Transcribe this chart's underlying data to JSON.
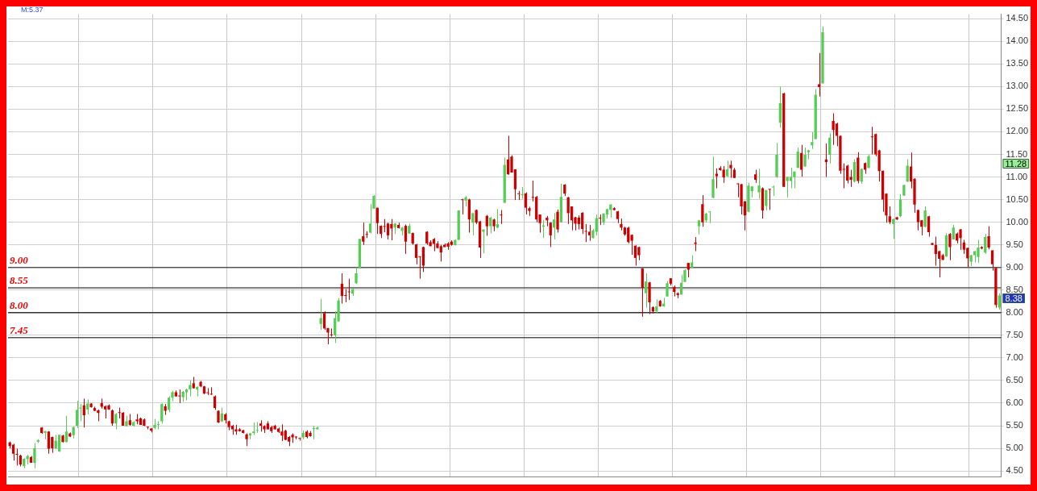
{
  "chart_data": {
    "type": "candlestick",
    "tick_labels": "y",
    "grid": true,
    "categories": [
      null,
      null,
      null,
      null,
      null,
      null,
      null,
      null,
      null,
      null,
      null,
      null,
      null,
      null,
      null,
      null,
      null,
      null,
      null,
      null,
      null,
      null,
      null,
      null,
      null,
      null,
      null,
      null,
      null,
      null,
      null,
      null,
      null,
      null,
      null,
      null,
      null,
      null,
      null,
      null,
      null,
      null,
      null,
      null,
      null,
      null,
      null,
      null,
      null,
      null,
      null,
      null,
      null,
      null,
      null,
      null,
      null,
      null,
      null,
      null,
      null,
      null,
      null,
      null,
      null,
      null,
      null,
      null,
      null,
      null,
      null,
      null,
      null,
      null,
      null,
      null,
      null,
      null,
      null,
      null,
      null,
      null,
      null,
      null,
      null,
      null,
      null,
      null,
      null,
      null,
      null,
      null,
      null,
      null,
      null,
      null,
      null,
      null,
      null,
      null,
      null,
      null,
      null,
      null,
      null,
      null,
      null,
      null,
      null,
      null,
      null,
      null,
      null,
      null,
      null,
      null,
      null,
      null,
      null,
      null,
      null,
      null,
      null,
      null,
      null,
      null,
      null,
      null,
      null,
      null,
      null,
      null,
      null,
      null,
      null,
      null,
      null,
      null,
      null,
      null,
      null,
      null,
      null,
      null,
      null,
      null,
      null,
      null,
      null,
      null,
      null,
      null,
      null,
      null,
      null,
      null,
      null,
      null,
      null,
      null,
      null,
      null,
      null,
      null,
      null,
      null,
      null,
      null,
      null,
      null,
      null,
      null,
      null,
      null,
      null,
      null,
      null,
      null,
      null,
      null,
      null,
      null,
      null,
      null,
      null,
      null,
      null,
      null,
      null,
      null,
      null,
      null,
      null,
      null,
      null,
      null,
      null,
      null,
      null,
      null,
      null,
      null,
      null,
      null,
      null,
      null,
      null,
      null,
      null,
      null,
      null,
      null,
      null,
      null,
      null,
      null,
      null,
      null,
      null,
      null,
      null,
      null,
      null,
      null,
      null,
      null,
      null,
      null,
      null,
      null,
      null,
      null,
      null,
      null,
      null,
      null,
      null,
      null,
      null,
      null,
      null,
      null,
      null,
      null,
      null,
      null,
      null,
      null,
      null,
      null,
      null,
      null,
      null,
      null,
      null,
      null,
      null,
      null,
      null,
      null,
      null,
      null,
      null,
      null,
      null,
      null,
      null,
      null,
      null,
      null,
      null,
      null,
      null,
      null,
      null,
      null,
      null,
      null,
      null,
      null,
      null
    ],
    "ohlc": [
      [
        5.13,
        5.15,
        5.0,
        5.05
      ],
      [
        5.08,
        5.1,
        4.73,
        4.88
      ],
      [
        4.86,
        4.99,
        4.62,
        4.86
      ],
      [
        4.84,
        4.86,
        4.6,
        4.64
      ],
      [
        4.61,
        4.78,
        4.56,
        4.77
      ],
      [
        4.76,
        4.86,
        4.64,
        4.83
      ],
      [
        4.81,
        4.83,
        4.68,
        4.68
      ],
      [
        4.68,
        5.12,
        4.56,
        5.0
      ],
      [
        5.15,
        5.2,
        5.12,
        5.18
      ],
      [
        5.46,
        5.47,
        5.32,
        5.34
      ],
      [
        5.34,
        5.38,
        5.2,
        5.38
      ],
      [
        5.37,
        5.38,
        4.88,
        4.99
      ],
      [
        5.25,
        5.26,
        4.9,
        5.0
      ],
      [
        5.0,
        5.3,
        4.98,
        5.17
      ],
      [
        4.93,
        5.3,
        4.92,
        5.3
      ],
      [
        5.28,
        5.3,
        5.13,
        5.14
      ],
      [
        5.14,
        5.72,
        5.13,
        5.37
      ],
      [
        5.33,
        5.35,
        5.25,
        5.26
      ],
      [
        5.29,
        5.48,
        5.22,
        5.47
      ],
      [
        5.5,
        6.05,
        5.45,
        5.85
      ],
      [
        5.88,
        5.98,
        5.6,
        5.9
      ],
      [
        5.95,
        6.1,
        5.46,
        5.73
      ],
      [
        5.86,
        6.08,
        5.75,
        5.99
      ],
      [
        5.99,
        6.0,
        5.9,
        5.91
      ],
      [
        5.89,
        5.92,
        5.82,
        5.83
      ],
      [
        5.84,
        5.86,
        5.6,
        5.78
      ],
      [
        6.0,
        6.1,
        5.88,
        5.92
      ],
      [
        5.93,
        5.95,
        5.66,
        5.86
      ],
      [
        5.95,
        5.97,
        5.85,
        5.86
      ],
      [
        5.84,
        5.86,
        5.5,
        5.55
      ],
      [
        5.55,
        5.78,
        5.42,
        5.76
      ],
      [
        5.8,
        5.9,
        5.66,
        5.78
      ],
      [
        5.79,
        5.8,
        5.5,
        5.5
      ],
      [
        5.49,
        5.72,
        5.48,
        5.6
      ],
      [
        5.62,
        5.76,
        5.5,
        5.52
      ],
      [
        5.5,
        5.6,
        5.48,
        5.58
      ],
      [
        5.64,
        5.76,
        5.53,
        5.6
      ],
      [
        5.66,
        5.68,
        5.52,
        5.52
      ],
      [
        5.64,
        5.66,
        5.49,
        5.5
      ],
      [
        5.47,
        5.48,
        5.42,
        5.46
      ],
      [
        5.44,
        5.45,
        5.35,
        5.39
      ],
      [
        5.45,
        5.65,
        5.42,
        5.52
      ],
      [
        5.52,
        5.6,
        5.42,
        5.53
      ],
      [
        5.6,
        5.99,
        5.55,
        5.98
      ],
      [
        5.93,
        5.98,
        5.74,
        5.83
      ],
      [
        5.85,
        6.15,
        5.8,
        6.12
      ],
      [
        6.12,
        6.27,
        6.04,
        6.24
      ],
      [
        6.24,
        6.28,
        6.14,
        6.15
      ],
      [
        6.16,
        6.3,
        6.0,
        6.15
      ],
      [
        6.13,
        6.27,
        6.03,
        6.25
      ],
      [
        6.24,
        6.32,
        6.06,
        6.3
      ],
      [
        6.3,
        6.5,
        6.15,
        6.4
      ],
      [
        6.44,
        6.58,
        6.32,
        6.33
      ],
      [
        6.3,
        6.37,
        6.15,
        6.36
      ],
      [
        6.47,
        6.49,
        6.35,
        6.37
      ],
      [
        6.37,
        6.38,
        6.2,
        6.21
      ],
      [
        6.22,
        6.33,
        6.18,
        6.22
      ],
      [
        6.2,
        6.35,
        6.18,
        6.19
      ],
      [
        6.15,
        6.17,
        5.85,
        5.89
      ],
      [
        5.83,
        5.84,
        5.56,
        5.57
      ],
      [
        5.6,
        5.9,
        5.58,
        5.77
      ],
      [
        5.75,
        5.78,
        5.55,
        5.62
      ],
      [
        5.6,
        5.61,
        5.4,
        5.47
      ],
      [
        5.5,
        5.52,
        5.3,
        5.42
      ],
      [
        5.42,
        5.52,
        5.3,
        5.37
      ],
      [
        5.42,
        5.45,
        5.37,
        5.38
      ],
      [
        5.4,
        5.41,
        5.33,
        5.34
      ],
      [
        5.31,
        5.33,
        5.05,
        5.2
      ],
      [
        5.28,
        5.34,
        5.2,
        5.33
      ],
      [
        5.34,
        5.57,
        5.3,
        5.37
      ],
      [
        5.39,
        5.58,
        5.34,
        5.4
      ],
      [
        5.55,
        5.62,
        5.37,
        5.5
      ],
      [
        5.49,
        5.51,
        5.34,
        5.42
      ],
      [
        5.55,
        5.6,
        5.42,
        5.42
      ],
      [
        5.47,
        5.5,
        5.34,
        5.38
      ],
      [
        5.5,
        5.52,
        5.42,
        5.42
      ],
      [
        5.44,
        5.46,
        5.34,
        5.36
      ],
      [
        5.37,
        5.53,
        5.16,
        5.28
      ],
      [
        5.39,
        5.41,
        5.18,
        5.19
      ],
      [
        5.25,
        5.27,
        5.05,
        5.15
      ],
      [
        5.3,
        5.33,
        5.12,
        5.24
      ],
      [
        5.24,
        5.27,
        5.2,
        5.24
      ],
      [
        5.22,
        5.24,
        5.17,
        5.21
      ],
      [
        5.24,
        5.39,
        5.2,
        5.34
      ],
      [
        5.37,
        5.4,
        5.22,
        5.25
      ],
      [
        5.34,
        5.38,
        5.26,
        5.27
      ],
      [
        5.43,
        5.5,
        5.2,
        5.44
      ],
      [
        5.42,
        5.48,
        5.42,
        5.46
      ],
      [
        7.75,
        8.3,
        7.62,
        7.88
      ],
      [
        7.99,
        8.03,
        7.62,
        7.65
      ],
      [
        7.66,
        7.66,
        7.3,
        7.56
      ],
      [
        7.5,
        7.65,
        7.47,
        7.5
      ],
      [
        7.5,
        8.03,
        7.33,
        7.88
      ],
      [
        7.81,
        8.32,
        7.8,
        8.27
      ],
      [
        8.64,
        8.87,
        8.2,
        8.37
      ],
      [
        8.37,
        8.52,
        8.23,
        8.37
      ],
      [
        8.45,
        8.75,
        8.28,
        8.45
      ],
      [
        8.42,
        8.53,
        8.37,
        8.52
      ],
      [
        8.65,
        9.0,
        8.63,
        8.87
      ],
      [
        8.98,
        9.63,
        8.98,
        9.63
      ],
      [
        9.69,
        9.99,
        9.5,
        9.57
      ],
      [
        9.72,
        9.8,
        9.65,
        9.72
      ],
      [
        9.77,
        10.4,
        9.75,
        9.97
      ],
      [
        10.3,
        10.6,
        10.3,
        10.58
      ],
      [
        10.32,
        10.32,
        9.74,
        9.98
      ],
      [
        9.92,
        9.93,
        9.65,
        9.74
      ],
      [
        9.9,
        10.07,
        9.78,
        9.9
      ],
      [
        9.97,
        9.99,
        9.62,
        9.71
      ],
      [
        9.96,
        10.07,
        9.6,
        9.86
      ],
      [
        9.88,
        9.98,
        9.74,
        9.97
      ],
      [
        9.94,
        9.99,
        9.86,
        9.87
      ],
      [
        9.81,
        9.9,
        9.71,
        9.88
      ],
      [
        9.92,
        9.95,
        9.3,
        9.57
      ],
      [
        9.75,
        9.97,
        9.74,
        9.92
      ],
      [
        9.76,
        9.77,
        9.5,
        9.53
      ],
      [
        9.51,
        9.52,
        9.07,
        9.21
      ],
      [
        9.23,
        9.24,
        8.75,
        9.23
      ],
      [
        9.45,
        9.46,
        8.9,
        9.04
      ],
      [
        9.79,
        9.8,
        9.5,
        9.53
      ],
      [
        9.56,
        9.6,
        9.47,
        9.47
      ],
      [
        9.63,
        9.65,
        9.36,
        9.52
      ],
      [
        9.53,
        9.58,
        9.42,
        9.43
      ],
      [
        9.47,
        9.5,
        9.13,
        9.33
      ],
      [
        9.5,
        9.53,
        9.45,
        9.45
      ],
      [
        9.53,
        9.56,
        9.39,
        9.46
      ],
      [
        9.57,
        9.6,
        9.48,
        9.5
      ],
      [
        9.49,
        9.61,
        9.49,
        9.61
      ],
      [
        9.61,
        10.26,
        9.61,
        10.26
      ],
      [
        10.49,
        10.52,
        10.17,
        10.49
      ],
      [
        10.48,
        10.58,
        10.35,
        10.55
      ],
      [
        10.5,
        10.52,
        9.77,
        10.06
      ],
      [
        9.99,
        10.2,
        9.71,
        10.2
      ],
      [
        10.27,
        10.28,
        9.96,
        9.99
      ],
      [
        10.02,
        10.03,
        9.21,
        9.44
      ],
      [
        9.79,
        9.84,
        9.31,
        9.84
      ],
      [
        10.14,
        10.16,
        9.7,
        9.91
      ],
      [
        9.91,
        10.12,
        9.75,
        10.1
      ],
      [
        10.06,
        10.08,
        9.8,
        9.91
      ],
      [
        9.88,
        10.29,
        9.87,
        9.96
      ],
      [
        10.15,
        10.27,
        9.96,
        10.15
      ],
      [
        10.43,
        11.43,
        10.43,
        11.27
      ],
      [
        11.39,
        11.91,
        11.05,
        11.06
      ],
      [
        11.45,
        11.48,
        11.1,
        11.1
      ],
      [
        11.17,
        11.17,
        10.49,
        10.73
      ],
      [
        10.62,
        10.69,
        10.49,
        10.62
      ],
      [
        10.6,
        10.78,
        10.52,
        10.62
      ],
      [
        10.64,
        10.66,
        10.17,
        10.32
      ],
      [
        10.31,
        10.34,
        10.14,
        10.25
      ],
      [
        10.54,
        10.92,
        10.46,
        10.54
      ],
      [
        10.56,
        10.58,
        10.0,
        10.06
      ],
      [
        10.17,
        10.17,
        9.77,
        9.98
      ],
      [
        9.9,
        10.05,
        9.65,
        9.93
      ],
      [
        10.1,
        10.14,
        9.91,
        10.04
      ],
      [
        9.99,
        10.0,
        9.45,
        9.71
      ],
      [
        9.88,
        10.2,
        9.62,
        10.06
      ],
      [
        10.23,
        10.28,
        9.77,
        9.84
      ],
      [
        10.0,
        10.85,
        9.99,
        10.56
      ],
      [
        10.83,
        10.84,
        10.58,
        10.63
      ],
      [
        10.55,
        10.56,
        9.96,
        10.2
      ],
      [
        10.35,
        10.35,
        9.82,
        10.04
      ],
      [
        10.11,
        10.12,
        9.82,
        9.97
      ],
      [
        10.1,
        10.15,
        9.84,
        9.96
      ],
      [
        10.21,
        10.22,
        9.74,
        9.85
      ],
      [
        9.79,
        9.96,
        9.56,
        9.79
      ],
      [
        9.79,
        9.94,
        9.59,
        9.71
      ],
      [
        9.65,
        9.85,
        9.64,
        9.82
      ],
      [
        9.79,
        10.17,
        9.71,
        10.09
      ],
      [
        10.08,
        10.17,
        9.94,
        10.08
      ],
      [
        9.99,
        10.2,
        9.94,
        10.19
      ],
      [
        10.17,
        10.29,
        10.08,
        10.29
      ],
      [
        10.27,
        10.4,
        10.1,
        10.39
      ],
      [
        10.31,
        10.33,
        10.26,
        10.27
      ],
      [
        10.24,
        10.25,
        9.98,
        10.07
      ],
      [
        9.96,
        10.08,
        9.82,
        9.88
      ],
      [
        9.88,
        9.9,
        9.7,
        9.73
      ],
      [
        9.88,
        9.9,
        9.53,
        9.56
      ],
      [
        9.72,
        9.73,
        9.28,
        9.59
      ],
      [
        9.48,
        9.49,
        9.04,
        9.21
      ],
      [
        9.45,
        9.46,
        9.16,
        9.27
      ],
      [
        8.98,
        8.98,
        7.91,
        8.55
      ],
      [
        8.43,
        8.87,
        8.11,
        8.69
      ],
      [
        8.67,
        8.68,
        7.97,
        8.23
      ],
      [
        8.12,
        8.14,
        7.98,
        8.03
      ],
      [
        8.03,
        8.29,
        7.99,
        8.14
      ],
      [
        8.26,
        8.28,
        8.13,
        8.14
      ],
      [
        8.14,
        8.33,
        8.13,
        8.2
      ],
      [
        8.36,
        8.7,
        8.35,
        8.65
      ],
      [
        8.76,
        8.76,
        8.6,
        8.64
      ],
      [
        8.57,
        8.6,
        8.36,
        8.46
      ],
      [
        8.43,
        8.45,
        8.32,
        8.39
      ],
      [
        8.4,
        8.84,
        8.4,
        8.66
      ],
      [
        8.68,
        8.96,
        8.68,
        8.94
      ],
      [
        9.1,
        9.1,
        8.78,
        8.95
      ],
      [
        8.99,
        9.27,
        8.99,
        9.11
      ],
      [
        9.55,
        9.67,
        9.36,
        9.52
      ],
      [
        9.91,
        10.05,
        9.73,
        10.04
      ],
      [
        10.4,
        10.6,
        9.9,
        10.0
      ],
      [
        10.04,
        10.21,
        9.99,
        10.19
      ],
      [
        10.22,
        10.24,
        9.98,
        10.23
      ],
      [
        10.54,
        11.45,
        10.53,
        10.95
      ],
      [
        11.07,
        11.19,
        10.75,
        11.02
      ],
      [
        11.2,
        11.24,
        11.14,
        11.15
      ],
      [
        11.16,
        11.24,
        10.87,
        10.99
      ],
      [
        11.02,
        11.36,
        11.0,
        11.17
      ],
      [
        11.27,
        11.36,
        10.98,
        11.19
      ],
      [
        11.16,
        11.2,
        10.98,
        10.98
      ],
      [
        10.84,
        10.86,
        10.55,
        10.84
      ],
      [
        10.84,
        10.85,
        10.17,
        10.35
      ],
      [
        10.46,
        10.47,
        9.82,
        10.15
      ],
      [
        10.23,
        10.87,
        10.22,
        10.81
      ],
      [
        10.69,
        10.8,
        10.55,
        10.79
      ],
      [
        11.06,
        11.16,
        10.87,
        10.94
      ],
      [
        10.66,
        11.18,
        10.52,
        10.81
      ],
      [
        10.75,
        10.77,
        10.08,
        10.26
      ],
      [
        10.36,
        10.71,
        10.26,
        10.71
      ],
      [
        10.72,
        10.73,
        10.27,
        10.72
      ],
      [
        10.77,
        10.81,
        10.58,
        10.78
      ],
      [
        11.0,
        11.75,
        10.98,
        11.49
      ],
      [
        12.2,
        13.0,
        12.09,
        12.63
      ],
      [
        12.85,
        12.86,
        10.78,
        10.78
      ],
      [
        10.91,
        11.0,
        10.55,
        11.0
      ],
      [
        10.91,
        11.2,
        10.75,
        11.0
      ],
      [
        11.0,
        11.12,
        10.75,
        11.12
      ],
      [
        11.2,
        11.65,
        11.2,
        11.56
      ],
      [
        11.53,
        11.71,
        11.01,
        11.16
      ],
      [
        11.23,
        11.65,
        11.23,
        11.49
      ],
      [
        11.55,
        11.6,
        11.39,
        11.59
      ],
      [
        11.7,
        11.99,
        11.62,
        11.77
      ],
      [
        11.84,
        12.94,
        11.84,
        12.82
      ],
      [
        13.05,
        13.74,
        12.78,
        12.99
      ],
      [
        13.07,
        14.33,
        13.07,
        14.2
      ],
      [
        11.39,
        11.74,
        11.0,
        11.33
      ],
      [
        11.49,
        11.97,
        11.3,
        11.87
      ],
      [
        12.24,
        12.41,
        11.71,
        12.04
      ],
      [
        12.18,
        12.2,
        11.68,
        11.91
      ],
      [
        11.91,
        11.92,
        11.07,
        11.14
      ],
      [
        11.16,
        11.3,
        10.75,
        11.16
      ],
      [
        11.25,
        11.27,
        10.86,
        10.92
      ],
      [
        11.0,
        11.16,
        10.78,
        10.94
      ],
      [
        10.9,
        11.39,
        10.88,
        11.33
      ],
      [
        11.43,
        11.55,
        10.86,
        10.91
      ],
      [
        10.9,
        11.19,
        10.85,
        11.18
      ],
      [
        11.31,
        11.32,
        11.07,
        11.16
      ],
      [
        11.2,
        11.5,
        11.19,
        11.46
      ],
      [
        11.88,
        12.11,
        11.5,
        11.88
      ],
      [
        11.95,
        11.96,
        11.46,
        11.5
      ],
      [
        11.59,
        11.6,
        10.9,
        11.13
      ],
      [
        11.14,
        11.14,
        10.23,
        10.5
      ],
      [
        10.63,
        10.64,
        9.99,
        10.15
      ],
      [
        10.13,
        10.35,
        9.96,
        10.0
      ],
      [
        9.96,
        10.08,
        9.63,
        10.07
      ],
      [
        10.11,
        10.12,
        10.05,
        10.06
      ],
      [
        10.13,
        10.62,
        10.11,
        10.5
      ],
      [
        10.59,
        10.83,
        10.58,
        10.82
      ],
      [
        10.9,
        11.39,
        10.89,
        11.25
      ],
      [
        11.23,
        11.54,
        10.75,
        10.9
      ],
      [
        10.96,
        10.97,
        10.21,
        10.39
      ],
      [
        10.27,
        10.28,
        9.82,
        10.0
      ],
      [
        10.04,
        10.05,
        9.71,
        9.9
      ],
      [
        9.9,
        10.35,
        9.89,
        10.26
      ],
      [
        10.13,
        10.14,
        9.68,
        9.78
      ],
      [
        9.54,
        9.54,
        9.49,
        9.5
      ],
      [
        9.5,
        9.68,
        9.04,
        9.3
      ],
      [
        9.36,
        9.37,
        8.78,
        9.19
      ],
      [
        9.27,
        9.3,
        9.16,
        9.17
      ],
      [
        9.24,
        9.76,
        9.24,
        9.71
      ],
      [
        9.74,
        9.76,
        9.16,
        9.45
      ],
      [
        9.62,
        9.94,
        9.62,
        9.88
      ],
      [
        9.75,
        9.77,
        9.53,
        9.59
      ],
      [
        9.84,
        9.85,
        9.39,
        9.65
      ],
      [
        9.55,
        9.61,
        9.3,
        9.39
      ],
      [
        9.43,
        9.44,
        9.01,
        9.2
      ],
      [
        9.13,
        9.28,
        9.03,
        9.27
      ],
      [
        9.27,
        9.36,
        9.11,
        9.36
      ],
      [
        9.23,
        9.61,
        9.1,
        9.44
      ],
      [
        9.45,
        9.47,
        9.4,
        9.42
      ],
      [
        9.33,
        9.74,
        9.3,
        9.67
      ],
      [
        9.69,
        9.91,
        9.4,
        9.44
      ],
      [
        9.38,
        9.38,
        8.93,
        9.07
      ],
      [
        8.99,
        8.99,
        8.11,
        8.17
      ],
      [
        8.11,
        8.43,
        8.07,
        8.38
      ]
    ],
    "colors": [
      "#cc0000",
      "#cc0000",
      "#cc0000",
      "#cc0000",
      "#55cc55",
      "#55cc55",
      "#cc0000",
      "#55cc55",
      "#55cc55",
      "#cc0000",
      "#55cc55",
      "#cc0000",
      "#cc0000",
      "#55cc55",
      "#55cc55",
      "#cc0000",
      "#55cc55",
      "#cc0000",
      "#55cc55",
      "#55cc55",
      "#55cc55",
      "#cc0000",
      "#55cc55",
      "#cc0000",
      "#cc0000",
      "#cc0000",
      "#cc0000",
      "#cc0000",
      "#cc0000",
      "#cc0000",
      "#55cc55",
      "#cc0000",
      "#cc0000",
      "#55cc55",
      "#cc0000",
      "#55cc55",
      "#cc0000",
      "#cc0000",
      "#cc0000",
      "#cc0000",
      "#cc0000",
      "#55cc55",
      "#55cc55",
      "#55cc55",
      "#cc0000",
      "#55cc55",
      "#55cc55",
      "#cc0000",
      "#cc0000",
      "#55cc55",
      "#55cc55",
      "#55cc55",
      "#cc0000",
      "#55cc55",
      "#cc0000",
      "#cc0000",
      "#cc0000",
      "#cc0000",
      "#cc0000",
      "#cc0000",
      "#55cc55",
      "#cc0000",
      "#cc0000",
      "#cc0000",
      "#cc0000",
      "#cc0000",
      "#cc0000",
      "#cc0000",
      "#55cc55",
      "#55cc55",
      "#55cc55",
      "#cc0000",
      "#cc0000",
      "#cc0000",
      "#cc0000",
      "#cc0000",
      "#cc0000",
      "#cc0000",
      "#cc0000",
      "#cc0000",
      "#cc0000",
      "#cc0000",
      "#cc0000",
      "#55cc55",
      "#cc0000",
      "#cc0000",
      "#55cc55",
      "#55cc55",
      "#55cc55",
      "#cc0000",
      "#cc0000",
      "#cc0000",
      "#55cc55",
      "#55cc55",
      "#cc0000",
      "#cc0000",
      "#cc0000",
      "#55cc55",
      "#55cc55",
      "#55cc55",
      "#cc0000",
      "#cc0000",
      "#55cc55",
      "#55cc55",
      "#cc0000",
      "#cc0000",
      "#cc0000",
      "#cc0000",
      "#cc0000",
      "#55cc55",
      "#cc0000",
      "#55cc55",
      "#cc0000",
      "#55cc55",
      "#cc0000",
      "#cc0000",
      "#cc0000",
      "#cc0000",
      "#cc0000",
      "#cc0000",
      "#cc0000",
      "#cc0000",
      "#cc0000",
      "#cc0000",
      "#cc0000",
      "#cc0000",
      "#55cc55",
      "#55cc55",
      "#cc0000",
      "#55cc55",
      "#cc0000",
      "#55cc55",
      "#cc0000",
      "#cc0000",
      "#55cc55",
      "#cc0000",
      "#55cc55",
      "#cc0000",
      "#55cc55",
      "#cc0000",
      "#55cc55",
      "#cc0000",
      "#cc0000",
      "#cc0000",
      "#cc0000",
      "#55cc55",
      "#cc0000",
      "#cc0000",
      "#cc0000",
      "#cc0000",
      "#cc0000",
      "#55cc55",
      "#cc0000",
      "#cc0000",
      "#55cc55",
      "#cc0000",
      "#55cc55",
      "#cc0000",
      "#cc0000",
      "#cc0000",
      "#cc0000",
      "#cc0000",
      "#cc0000",
      "#cc0000",
      "#cc0000",
      "#55cc55",
      "#55cc55",
      "#cc0000",
      "#55cc55",
      "#55cc55",
      "#55cc55",
      "#cc0000",
      "#cc0000",
      "#cc0000",
      "#cc0000",
      "#cc0000",
      "#cc0000",
      "#cc0000",
      "#cc0000",
      "#cc0000",
      "#55cc55",
      "#cc0000",
      "#cc0000",
      "#55cc55",
      "#cc0000",
      "#55cc55",
      "#55cc55",
      "#cc0000",
      "#cc0000",
      "#cc0000",
      "#55cc55",
      "#55cc55",
      "#cc0000",
      "#55cc55",
      "#cc0000",
      "#55cc55",
      "#cc0000",
      "#55cc55",
      "#55cc55",
      "#55cc55",
      "#cc0000",
      "#cc0000",
      "#cc0000",
      "#55cc55",
      "#cc0000",
      "#cc0000",
      "#cc0000",
      "#cc0000",
      "#cc0000",
      "#55cc55",
      "#55cc55",
      "#cc0000",
      "#55cc55",
      "#cc0000",
      "#55cc55",
      "#cc0000",
      "#55cc55",
      "#55cc55",
      "#55cc55",
      "#cc0000",
      "#55cc55",
      "#55cc55",
      "#55cc55",
      "#55cc55",
      "#cc0000",
      "#55cc55",
      "#55cc55",
      "#55cc55",
      "#55cc55",
      "#cc0000",
      "#55cc55",
      "#cc0000",
      "#55cc55",
      "#cc0000",
      "#cc0000",
      "#cc0000",
      "#cc0000",
      "#cc0000",
      "#cc0000",
      "#55cc55",
      "#cc0000",
      "#55cc55",
      "#cc0000",
      "#55cc55",
      "#cc0000",
      "#cc0000",
      "#cc0000",
      "#cc0000",
      "#cc0000",
      "#cc0000",
      "#55cc55",
      "#cc0000",
      "#55cc55",
      "#55cc55",
      "#55cc55",
      "#cc0000",
      "#cc0000",
      "#cc0000",
      "#cc0000",
      "#55cc55",
      "#cc0000",
      "#cc0000",
      "#cc0000",
      "#cc0000",
      "#cc0000",
      "#55cc55",
      "#cc0000",
      "#55cc55",
      "#cc0000",
      "#cc0000",
      "#cc0000",
      "#cc0000",
      "#55cc55",
      "#55cc55",
      "#55cc55",
      "#cc0000",
      "#55cc55",
      "#cc0000",
      "#cc0000",
      "#cc0000",
      "#55cc55"
    ],
    "ylim": [
      4.37,
      14.6
    ],
    "yticks": [
      {
        "value": 4.5,
        "label": "4.50"
      },
      {
        "value": 5,
        "label": "5.00"
      },
      {
        "value": 5.5,
        "label": "5.50"
      },
      {
        "value": 6,
        "label": "6.00"
      },
      {
        "value": 6.5,
        "label": "6.50"
      },
      {
        "value": 7,
        "label": "7.00"
      },
      {
        "value": 7.5,
        "label": "7.50"
      },
      {
        "value": 8,
        "label": "8.00"
      },
      {
        "value": 8.5,
        "label": "8.50"
      },
      {
        "value": 9,
        "label": "9.00"
      },
      {
        "value": 9.5,
        "label": "9.50"
      },
      {
        "value": 10,
        "label": "10.00"
      },
      {
        "value": 10.5,
        "label": "10.50"
      },
      {
        "value": 11,
        "label": "11.00"
      },
      {
        "value": 11.5,
        "label": "11.50"
      },
      {
        "value": 12,
        "label": "12.00"
      },
      {
        "value": 12.5,
        "label": "12.50"
      },
      {
        "value": 13,
        "label": "13.00"
      },
      {
        "value": 13.5,
        "label": "13.50"
      },
      {
        "value": 14,
        "label": "14.00"
      },
      {
        "value": 14.5,
        "label": "14.50"
      }
    ],
    "ref_lines": [
      {
        "axis": "y",
        "value": 9,
        "label": "9.00",
        "color": "#555555"
      },
      {
        "axis": "y",
        "value": 8.55,
        "label": "8.55",
        "color": "#555555"
      },
      {
        "axis": "y",
        "value": 8,
        "label": "8.00",
        "color": "#333333"
      },
      {
        "axis": "y",
        "value": 7.45,
        "label": "7.45",
        "color": "#555555"
      }
    ],
    "annotations": [
      "M:5.37",
      "11.28",
      "8.38"
    ]
  }
}
